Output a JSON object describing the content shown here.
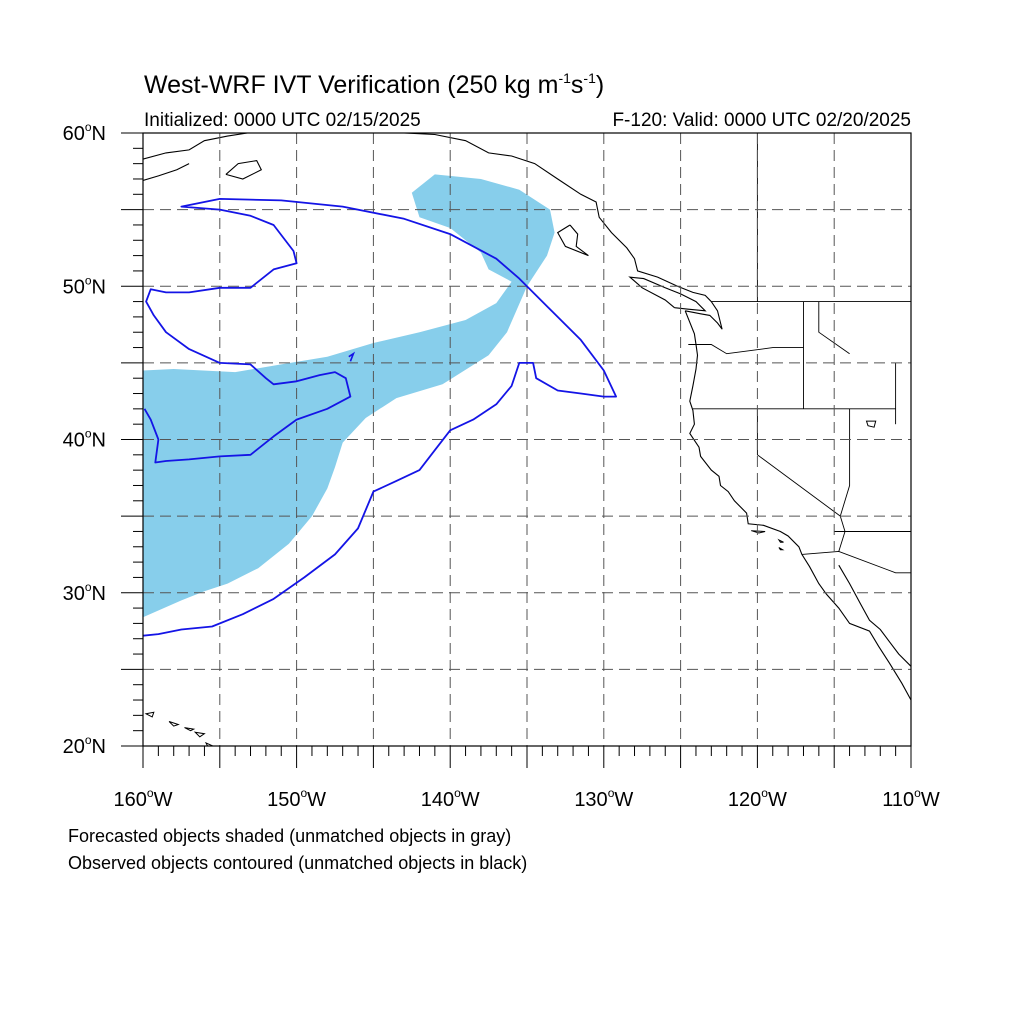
{
  "title": {
    "main": "West-WRF IVT Verification (250 kg m",
    "exp1": "-1",
    "mid": "s",
    "exp2": "-1",
    "end": ")"
  },
  "subtitle": {
    "left": "Initialized: 0000 UTC 02/15/2025",
    "right": "F-120: Valid: 0000 UTC 02/20/2025"
  },
  "axes": {
    "lon_range": [
      -160,
      -110
    ],
    "lat_range": [
      20,
      60
    ],
    "lat_ticks": [
      {
        "value": 20,
        "num": "20",
        "hemi": "N"
      },
      {
        "value": 30,
        "num": "30",
        "hemi": "N"
      },
      {
        "value": 40,
        "num": "40",
        "hemi": "N"
      },
      {
        "value": 50,
        "num": "50",
        "hemi": "N"
      },
      {
        "value": 60,
        "num": "60",
        "hemi": "N"
      }
    ],
    "lon_ticks": [
      {
        "value": -160,
        "num": "160",
        "hemi": "W"
      },
      {
        "value": -150,
        "num": "150",
        "hemi": "W"
      },
      {
        "value": -140,
        "num": "140",
        "hemi": "W"
      },
      {
        "value": -130,
        "num": "130",
        "hemi": "W"
      },
      {
        "value": -120,
        "num": "120",
        "hemi": "W"
      },
      {
        "value": -110,
        "num": "110",
        "hemi": "W"
      }
    ],
    "degree_symbol": "o",
    "gridlines_every_deg": 5
  },
  "colors": {
    "forecast_fill": "#87CEEB",
    "observed_contour": "#1414E6",
    "coastline": "#000000",
    "grid": "#555555"
  },
  "forecast_object": {
    "type": "filled-region",
    "polygon_lonlat": [
      [
        -160,
        44.5
      ],
      [
        -158,
        44.6
      ],
      [
        -154,
        44.4
      ],
      [
        -151,
        44.9
      ],
      [
        -148,
        45.4
      ],
      [
        -145,
        46.3
      ],
      [
        -142,
        47.0
      ],
      [
        -139,
        47.8
      ],
      [
        -137,
        48.9
      ],
      [
        -136,
        50.3
      ],
      [
        -137.5,
        51.1
      ],
      [
        -138,
        52.2
      ],
      [
        -140,
        53.8
      ],
      [
        -142,
        54.5
      ],
      [
        -142.5,
        56.1
      ],
      [
        -141,
        57.3
      ],
      [
        -138,
        57.0
      ],
      [
        -135.5,
        56.3
      ],
      [
        -133.5,
        55.0
      ],
      [
        -133.2,
        53.5
      ],
      [
        -133.7,
        52.0
      ],
      [
        -135.0,
        50.0
      ],
      [
        -136.3,
        47.0
      ],
      [
        -137.5,
        45.5
      ],
      [
        -140.5,
        43.6
      ],
      [
        -143.5,
        42.7
      ],
      [
        -145.5,
        41.4
      ],
      [
        -147.0,
        39.8
      ],
      [
        -147.5,
        38.2
      ],
      [
        -148.0,
        36.8
      ],
      [
        -149.0,
        35.0
      ],
      [
        -150.5,
        33.2
      ],
      [
        -152.5,
        31.6
      ],
      [
        -154.5,
        30.6
      ],
      [
        -156.0,
        30.1
      ],
      [
        -157.5,
        29.5
      ],
      [
        -160,
        28.4
      ]
    ]
  },
  "observed_object": {
    "type": "contour",
    "polyline_lonlat": [
      [
        -160,
        27.2
      ],
      [
        -159,
        27.3
      ],
      [
        -157.5,
        27.6
      ],
      [
        -155.5,
        27.8
      ],
      [
        -153.5,
        28.6
      ],
      [
        -151.5,
        29.6
      ],
      [
        -149.5,
        31.0
      ],
      [
        -147.5,
        32.5
      ],
      [
        -146.0,
        34.2
      ],
      [
        -145.0,
        36.6
      ],
      [
        -143.5,
        37.3
      ],
      [
        -142.0,
        38.0
      ],
      [
        -141.0,
        39.3
      ],
      [
        -140.0,
        40.6
      ],
      [
        -138.5,
        41.3
      ],
      [
        -137.0,
        42.3
      ],
      [
        -136.0,
        43.5
      ],
      [
        -135.5,
        45.0
      ],
      [
        -134.6,
        45.0
      ],
      [
        -134.4,
        44.0
      ],
      [
        -133.0,
        43.2
      ],
      [
        -131.5,
        43.0
      ],
      [
        -130.0,
        42.8
      ],
      [
        -129.2,
        42.8
      ],
      [
        -130.0,
        44.5
      ],
      [
        -131.5,
        46.5
      ],
      [
        -133.5,
        48.5
      ],
      [
        -135.5,
        50.5
      ],
      [
        -137.0,
        51.8
      ],
      [
        -140.0,
        53.4
      ],
      [
        -143.0,
        54.4
      ],
      [
        -147.0,
        55.2
      ],
      [
        -151.0,
        55.6
      ],
      [
        -155.0,
        55.7
      ],
      [
        -157.5,
        55.2
      ],
      [
        -155.0,
        55.0
      ],
      [
        -153.0,
        54.6
      ],
      [
        -151.5,
        54.0
      ],
      [
        -150.2,
        52.3
      ],
      [
        -150.0,
        51.5
      ],
      [
        -151.5,
        51.1
      ],
      [
        -153.0,
        49.9
      ],
      [
        -155.0,
        49.9
      ],
      [
        -157.0,
        49.6
      ],
      [
        -158.5,
        49.6
      ],
      [
        -159.5,
        49.8
      ],
      [
        -159.8,
        49.0
      ],
      [
        -159.3,
        48.1
      ],
      [
        -158.5,
        47.0
      ],
      [
        -157.0,
        45.9
      ],
      [
        -155.0,
        45.0
      ],
      [
        -153.0,
        44.9
      ],
      [
        -152.0,
        44.0
      ],
      [
        -151.5,
        43.6
      ],
      [
        -150.0,
        43.8
      ],
      [
        -148.5,
        44.2
      ],
      [
        -147.5,
        44.4
      ],
      [
        -146.8,
        44.0
      ],
      [
        -146.5,
        42.8
      ],
      [
        -148.0,
        42.0
      ],
      [
        -150.0,
        41.3
      ],
      [
        -151.5,
        40.2
      ],
      [
        -153.0,
        39.0
      ],
      [
        -155.0,
        38.9
      ],
      [
        -157.0,
        38.7
      ],
      [
        -158.5,
        38.6
      ],
      [
        -159.2,
        38.5
      ],
      [
        -159.0,
        40.0
      ],
      [
        -159.5,
        41.3
      ],
      [
        -159.9,
        42.0
      ]
    ]
  },
  "state_lines_lonlat": [
    [
      [
        -124.5,
        46.2
      ],
      [
        -123.0,
        46.2
      ],
      [
        -122.0,
        45.6
      ],
      [
        -119.0,
        46.0
      ],
      [
        -117.0,
        46.0
      ]
    ],
    [
      [
        -124.2,
        42.0
      ],
      [
        -120.0,
        42.0
      ],
      [
        -117.0,
        42.0
      ],
      [
        -114.0,
        42.0
      ],
      [
        -111.0,
        42.0
      ]
    ],
    [
      [
        -117.0,
        42.0
      ],
      [
        -117.0,
        46.0
      ],
      [
        -117.0,
        49.0
      ]
    ],
    [
      [
        -120.0,
        42.0
      ],
      [
        -120.0,
        39.0
      ],
      [
        -114.6,
        35.0
      ]
    ],
    [
      [
        -123.0,
        49.0
      ],
      [
        -110.0,
        49.0
      ]
    ],
    [
      [
        -116.0,
        49.0
      ],
      [
        -116.0,
        47.0
      ],
      [
        -114.0,
        45.6
      ]
    ],
    [
      [
        -114.0,
        42.0
      ],
      [
        -114.0,
        37.0
      ],
      [
        -114.6,
        35.0
      ],
      [
        -114.3,
        34.0
      ],
      [
        -114.7,
        32.7
      ]
    ],
    [
      [
        -117.1,
        32.5
      ],
      [
        -114.7,
        32.7
      ],
      [
        -111.0,
        31.3
      ],
      [
        -108.2,
        31.3
      ]
    ],
    [
      [
        -120.0,
        60.0
      ],
      [
        -120.0,
        49.0
      ]
    ],
    [
      [
        -111.0,
        45.0
      ],
      [
        -111.0,
        41.0
      ]
    ]
  ],
  "coast_lonlat": [
    [
      [
        -124.7,
        48.4
      ],
      [
        -124.1,
        46.9
      ],
      [
        -124.0,
        46.2
      ],
      [
        -123.9,
        45.5
      ],
      [
        -124.0,
        44.6
      ],
      [
        -124.2,
        43.5
      ],
      [
        -124.4,
        42.5
      ],
      [
        -124.2,
        41.9
      ],
      [
        -124.1,
        41.0
      ],
      [
        -124.4,
        40.4
      ],
      [
        -123.8,
        39.5
      ],
      [
        -123.7,
        38.9
      ],
      [
        -123.0,
        38.0
      ],
      [
        -122.5,
        37.6
      ],
      [
        -122.4,
        37.0
      ],
      [
        -121.9,
        36.6
      ],
      [
        -121.5,
        36.0
      ],
      [
        -120.7,
        35.2
      ],
      [
        -120.6,
        34.5
      ],
      [
        -119.6,
        34.4
      ],
      [
        -118.5,
        34.0
      ],
      [
        -118.0,
        33.7
      ],
      [
        -117.3,
        33.0
      ],
      [
        -117.1,
        32.5
      ],
      [
        -116.6,
        31.7
      ],
      [
        -116.0,
        30.6
      ],
      [
        -115.5,
        29.9
      ],
      [
        -114.7,
        29.0
      ],
      [
        -114.0,
        28.0
      ],
      [
        -112.7,
        27.5
      ],
      [
        -112.1,
        26.5
      ],
      [
        -111.4,
        25.4
      ],
      [
        -110.6,
        24.1
      ],
      [
        -110.0,
        23.0
      ]
    ],
    [
      [
        -114.7,
        31.8
      ],
      [
        -114.0,
        30.6
      ],
      [
        -113.3,
        29.3
      ],
      [
        -112.7,
        28.2
      ],
      [
        -112.0,
        27.6
      ],
      [
        -111.4,
        26.8
      ],
      [
        -110.8,
        26.0
      ],
      [
        -110.0,
        25.2
      ]
    ],
    [
      [
        -124.7,
        48.4
      ],
      [
        -123.7,
        48.2
      ],
      [
        -123.1,
        48.1
      ],
      [
        -122.6,
        47.6
      ],
      [
        -122.3,
        47.2
      ],
      [
        -122.6,
        48.4
      ],
      [
        -123.0,
        49.0
      ],
      [
        -123.4,
        49.4
      ],
      [
        -124.2,
        49.6
      ],
      [
        -125.2,
        50.0
      ],
      [
        -126.5,
        50.6
      ],
      [
        -127.8,
        51.0
      ],
      [
        -128.0,
        51.8
      ],
      [
        -128.5,
        52.5
      ],
      [
        -129.5,
        53.5
      ],
      [
        -130.3,
        54.5
      ],
      [
        -130.5,
        55.5
      ],
      [
        -131.5,
        56.0
      ],
      [
        -133.0,
        57.0
      ],
      [
        -134.5,
        58.0
      ],
      [
        -136.0,
        58.5
      ],
      [
        -137.5,
        58.7
      ],
      [
        -139.0,
        59.5
      ],
      [
        -141.0,
        59.9
      ],
      [
        -143.0,
        60.0
      ]
    ],
    [
      [
        -125.4,
        48.6
      ],
      [
        -124.5,
        48.5
      ],
      [
        -123.4,
        48.4
      ],
      [
        -124.0,
        49.0
      ],
      [
        -125.0,
        49.5
      ],
      [
        -126.0,
        49.9
      ],
      [
        -127.4,
        50.5
      ],
      [
        -128.3,
        50.6
      ],
      [
        -127.5,
        49.9
      ],
      [
        -126.0,
        49.1
      ],
      [
        -125.4,
        48.6
      ]
    ],
    [
      [
        -132.2,
        54.0
      ],
      [
        -131.7,
        53.4
      ],
      [
        -131.8,
        52.6
      ],
      [
        -131.0,
        52.0
      ],
      [
        -132.5,
        52.6
      ],
      [
        -133.0,
        53.5
      ],
      [
        -132.2,
        54.0
      ]
    ],
    [
      [
        -160.0,
        58.3
      ],
      [
        -158.5,
        58.7
      ],
      [
        -157.0,
        58.9
      ],
      [
        -156.0,
        59.5
      ],
      [
        -154.5,
        59.8
      ],
      [
        -153.2,
        60.0
      ]
    ],
    [
      [
        -160.0,
        56.9
      ],
      [
        -159.0,
        57.2
      ],
      [
        -157.8,
        57.6
      ],
      [
        -157.0,
        58.0
      ]
    ],
    [
      [
        -154.6,
        57.3
      ],
      [
        -153.5,
        57.0
      ],
      [
        -152.3,
        57.6
      ],
      [
        -152.6,
        58.2
      ],
      [
        -153.8,
        58.0
      ],
      [
        -154.6,
        57.3
      ]
    ],
    [
      [
        -115.0,
        34.0
      ],
      [
        -110.0,
        34.0
      ]
    ]
  ],
  "islands_lonlat": [
    [
      [
        -159.8,
        22.1
      ],
      [
        -159.3,
        22.2
      ],
      [
        -159.4,
        21.9
      ],
      [
        -159.8,
        22.1
      ]
    ],
    [
      [
        -158.3,
        21.6
      ],
      [
        -157.7,
        21.4
      ],
      [
        -158.0,
        21.3
      ],
      [
        -158.3,
        21.6
      ]
    ],
    [
      [
        -157.3,
        21.2
      ],
      [
        -156.7,
        21.1
      ],
      [
        -156.9,
        21.0
      ],
      [
        -157.3,
        21.2
      ]
    ],
    [
      [
        -156.6,
        20.9
      ],
      [
        -156.0,
        20.8
      ],
      [
        -156.3,
        20.6
      ],
      [
        -156.6,
        20.9
      ]
    ],
    [
      [
        -155.9,
        20.2
      ],
      [
        -155.0,
        19.8
      ],
      [
        -155.6,
        19.6
      ],
      [
        -155.9,
        20.2
      ]
    ],
    [
      [
        -120.4,
        34.05
      ],
      [
        -119.5,
        34.0
      ],
      [
        -119.9,
        33.9
      ],
      [
        -120.4,
        34.05
      ]
    ],
    [
      [
        -118.6,
        33.45
      ],
      [
        -118.3,
        33.3
      ],
      [
        -118.5,
        33.3
      ],
      [
        -118.6,
        33.45
      ]
    ],
    [
      [
        -118.6,
        32.95
      ],
      [
        -118.35,
        32.8
      ],
      [
        -118.5,
        32.8
      ],
      [
        -118.6,
        32.95
      ]
    ],
    [
      [
        -112.9,
        41.2
      ],
      [
        -112.3,
        41.2
      ],
      [
        -112.4,
        40.8
      ],
      [
        -112.8,
        40.9
      ],
      [
        -112.9,
        41.2
      ]
    ]
  ],
  "notes": {
    "forecast": "Forecasted objects shaded (unmatched objects in gray)",
    "observed": "Observed objects contoured (unmatched objects in black)"
  }
}
